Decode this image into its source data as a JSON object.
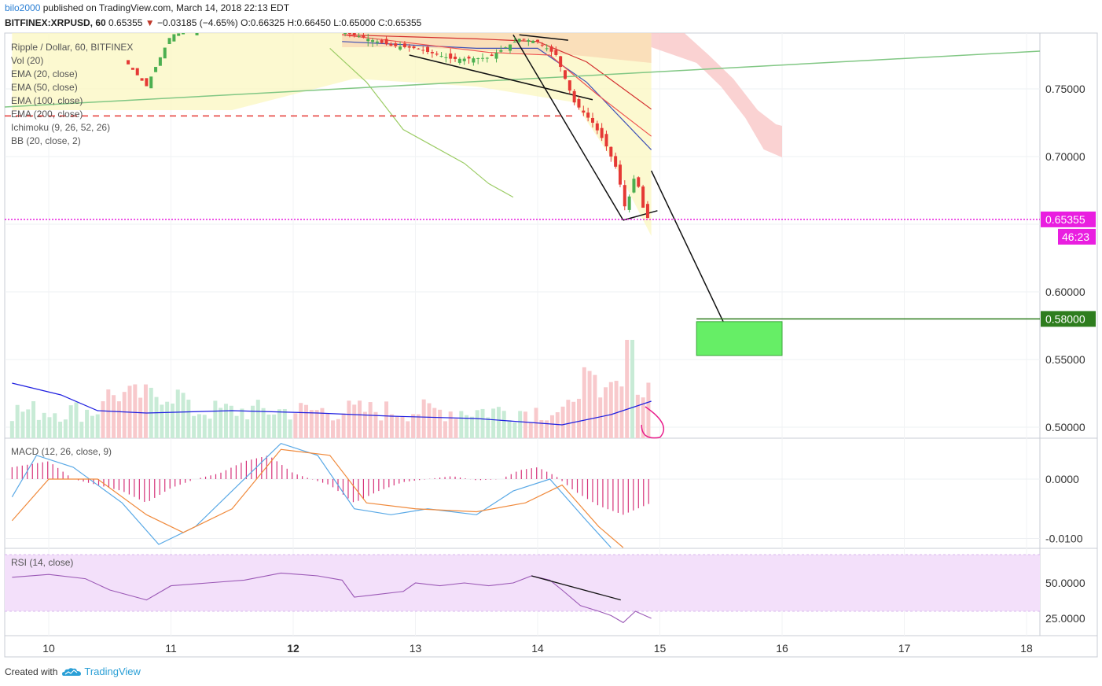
{
  "header": {
    "author": "bilo2000",
    "published": "published on TradingView.com, March 14, 2018 22:13 EDT",
    "symbol": "BITFINEX:XRPUSD, 60",
    "last": "0.65355",
    "change": "−0.03185 (−4.65%)",
    "open": "O:0.66325",
    "high": "H:0.66450",
    "low": "L:0.65000",
    "close": "C:0.65355"
  },
  "main_legend": {
    "title": "Ripple / Dollar, 60, BITFINEX",
    "items": [
      "Vol (20)",
      "EMA (20, close)",
      "EMA (50, close)",
      "EMA (100, close)",
      "EMA (200, close)",
      "Ichimoku (9, 26, 52, 26)",
      "BB (20, close, 2)"
    ]
  },
  "macd_legend": "MACD (12, 26, close, 9)",
  "rsi_legend": "RSI (14, close)",
  "price_axis": {
    "ticks": [
      "0.75000",
      "0.70000",
      "0.60000",
      "0.55000",
      "0.50000"
    ],
    "current_price": "0.65355",
    "countdown": "46:23",
    "target_price": "0.58000"
  },
  "macd_axis": {
    "ticks": [
      "0.0000",
      "-0.0100"
    ]
  },
  "rsi_axis": {
    "ticks": [
      "50.0000",
      "25.0000"
    ]
  },
  "time_axis": {
    "ticks": [
      "10",
      "11",
      "12",
      "13",
      "14",
      "15",
      "16",
      "17",
      "18"
    ]
  },
  "colors": {
    "up": "#4caf50",
    "down": "#e53935",
    "current_line": "#e91ee0",
    "target": "#2e7d1e",
    "target_box": "#66ee66",
    "rsi_band": "#f3e0fa"
  },
  "footer": {
    "created_with": "Created with",
    "brand": "TradingView"
  },
  "chart_data": {
    "type": "candlestick",
    "symbol": "BITFINEX:XRPUSD",
    "interval": "60",
    "x_ticks": [
      "10",
      "11",
      "12",
      "13",
      "14",
      "15",
      "16",
      "17",
      "18"
    ],
    "price_range": [
      0.49,
      0.79
    ],
    "ohlc_last": {
      "open": 0.66325,
      "high": 0.6645,
      "low": 0.65,
      "close": 0.65355
    },
    "horizontal_levels": [
      {
        "name": "current",
        "value": 0.65355
      },
      {
        "name": "target",
        "value": 0.58
      },
      {
        "name": "support-dashed",
        "value": 0.73
      }
    ],
    "target_zone": {
      "x_start_day": 15.3,
      "x_end_day": 16.0,
      "y_top": 0.578,
      "y_bottom": 0.553
    },
    "projection_line": {
      "from": [
        14.93,
        0.69
      ],
      "to": [
        15.65,
        0.553
      ]
    },
    "close_path": [
      [
        9.7,
        0.76
      ],
      [
        10.0,
        0.775
      ],
      [
        10.4,
        0.795
      ],
      [
        10.8,
        0.752
      ],
      [
        11.0,
        0.79
      ],
      [
        11.3,
        0.795
      ],
      [
        11.6,
        0.8
      ],
      [
        12.0,
        0.8
      ],
      [
        12.35,
        0.795
      ],
      [
        12.5,
        0.79
      ],
      [
        12.8,
        0.782
      ],
      [
        13.0,
        0.78
      ],
      [
        13.3,
        0.772
      ],
      [
        13.6,
        0.773
      ],
      [
        13.85,
        0.787
      ],
      [
        14.0,
        0.785
      ],
      [
        14.15,
        0.775
      ],
      [
        14.3,
        0.74
      ],
      [
        14.45,
        0.725
      ],
      [
        14.55,
        0.71
      ],
      [
        14.65,
        0.69
      ],
      [
        14.72,
        0.66
      ],
      [
        14.8,
        0.688
      ],
      [
        14.88,
        0.655
      ],
      [
        14.93,
        0.654
      ]
    ],
    "macd_range": [
      -0.013,
      0.007
    ],
    "macd_hist": [
      [
        9.7,
        0.002
      ],
      [
        10.0,
        0.003
      ],
      [
        10.2,
        0.0
      ],
      [
        10.4,
        -0.001
      ],
      [
        10.6,
        -0.002
      ],
      [
        10.8,
        -0.004
      ],
      [
        11.0,
        -0.0015
      ],
      [
        11.2,
        0.0
      ],
      [
        11.4,
        0.001
      ],
      [
        11.6,
        0.003
      ],
      [
        11.8,
        0.004
      ],
      [
        12.0,
        0.001
      ],
      [
        12.3,
        -0.001
      ],
      [
        12.5,
        -0.004
      ],
      [
        12.7,
        -0.002
      ],
      [
        12.9,
        -0.0005
      ],
      [
        13.1,
        0.0
      ],
      [
        13.3,
        0.0005
      ],
      [
        13.5,
        -0.0002
      ],
      [
        13.7,
        0.0
      ],
      [
        13.85,
        0.0015
      ],
      [
        14.0,
        0.002
      ],
      [
        14.15,
        0.0005
      ],
      [
        14.3,
        -0.002
      ],
      [
        14.5,
        -0.0045
      ],
      [
        14.7,
        -0.006
      ],
      [
        14.93,
        -0.004
      ]
    ],
    "rsi_range": [
      15,
      75
    ],
    "rsi_path": [
      [
        9.7,
        54
      ],
      [
        10.0,
        56
      ],
      [
        10.3,
        53
      ],
      [
        10.5,
        45
      ],
      [
        10.8,
        38
      ],
      [
        11.0,
        48
      ],
      [
        11.3,
        50
      ],
      [
        11.6,
        52
      ],
      [
        11.9,
        57
      ],
      [
        12.2,
        55
      ],
      [
        12.4,
        52
      ],
      [
        12.5,
        40
      ],
      [
        12.7,
        42
      ],
      [
        12.9,
        44
      ],
      [
        13.0,
        50
      ],
      [
        13.2,
        48
      ],
      [
        13.4,
        50
      ],
      [
        13.6,
        48
      ],
      [
        13.8,
        50
      ],
      [
        13.95,
        55
      ],
      [
        14.1,
        52
      ],
      [
        14.2,
        45
      ],
      [
        14.35,
        34
      ],
      [
        14.5,
        30
      ],
      [
        14.6,
        27
      ],
      [
        14.7,
        22
      ],
      [
        14.8,
        30
      ],
      [
        14.93,
        25
      ]
    ]
  }
}
